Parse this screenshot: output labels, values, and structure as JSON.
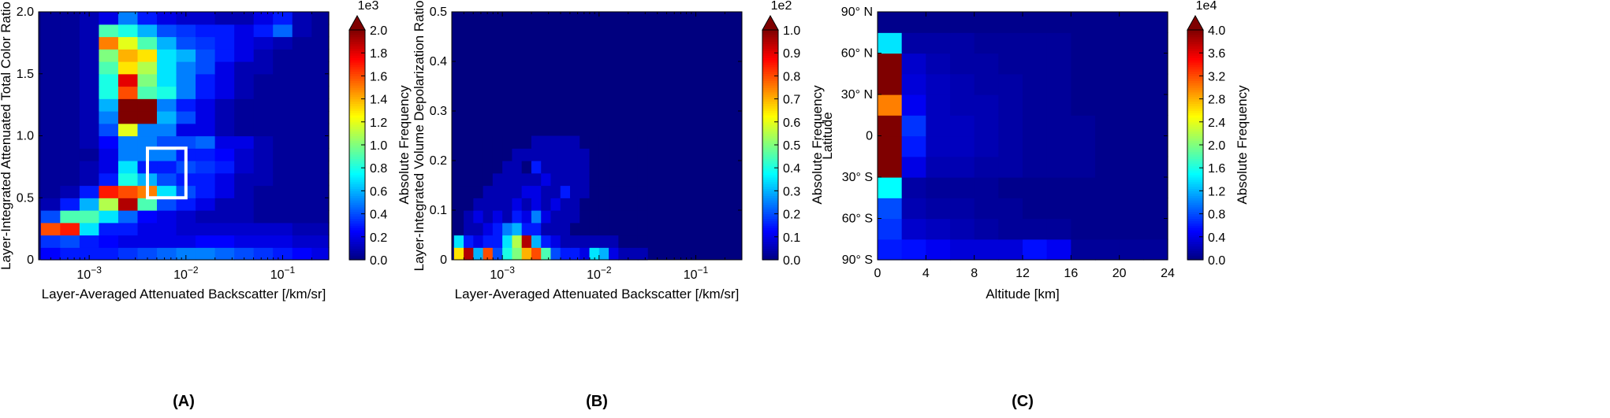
{
  "colormap": [
    "#00007f",
    "#0000ff",
    "#007fff",
    "#00ffff",
    "#7fff7f",
    "#ffff00",
    "#ff7f00",
    "#ff0000",
    "#7f0000"
  ],
  "chart_data": [
    {
      "type": "heatmap",
      "panel_label": "(A)",
      "xlabel": "Layer-Averaged Attenuated Backscatter [/km/sr]",
      "ylabel": "Layer-Integrated Attenuated Total Color Ratio",
      "xscale": "log",
      "xlim": [
        0.0003,
        0.3
      ],
      "ylim": [
        0,
        2.0
      ],
      "xticks": [
        {
          "value": 0.001,
          "base": "10",
          "exp": "−3"
        },
        {
          "value": 0.01,
          "base": "10",
          "exp": "−2"
        },
        {
          "value": 0.1,
          "base": "10",
          "exp": "−1"
        }
      ],
      "yticks": [
        "0",
        "0.5",
        "1.0",
        "1.5",
        "2.0"
      ],
      "colorbar": {
        "label": "Absolute Frequency",
        "scale_label": "1e3",
        "range": [
          0,
          2.0
        ],
        "ticks": [
          "0.0",
          "0.2",
          "0.4",
          "0.6",
          "0.8",
          "1.0",
          "1.2",
          "1.4",
          "1.6",
          "1.8",
          "2.0"
        ]
      },
      "highlight_box": {
        "x": [
          0.004,
          0.01
        ],
        "y": [
          0.5,
          0.9
        ]
      },
      "x_bin_edges_log10": [
        -3.5,
        -3.3,
        -3.1,
        -2.9,
        -2.7,
        -2.5,
        -2.3,
        -2.1,
        -1.9,
        -1.7,
        -1.5,
        -1.3,
        -1.1,
        -0.9,
        -0.7,
        -0.5
      ],
      "y_bin_edges": [
        0,
        0.1,
        0.2,
        0.3,
        0.4,
        0.5,
        0.6,
        0.7,
        0.8,
        0.9,
        1.0,
        1.1,
        1.2,
        1.3,
        1.4,
        1.5,
        1.6,
        1.7,
        1.8,
        1.9,
        2.0
      ],
      "values_rows_bottom_to_top": [
        [
          0.25,
          0.3,
          0.3,
          0.3,
          0.35,
          0.4,
          0.45,
          0.5,
          0.5,
          0.45,
          0.4,
          0.35,
          0.3,
          0.25,
          0.2
        ],
        [
          0.35,
          0.4,
          0.3,
          0.25,
          0.2,
          0.2,
          0.2,
          0.2,
          0.25,
          0.25,
          0.2,
          0.2,
          0.2,
          0.15,
          0.15
        ],
        [
          1.6,
          1.7,
          0.7,
          0.3,
          0.3,
          0.2,
          0.2,
          0.15,
          0.15,
          0.15,
          0.15,
          0.15,
          0.15,
          0.1,
          0.1
        ],
        [
          0.4,
          0.9,
          0.9,
          0.7,
          0.45,
          0.25,
          0.2,
          0.15,
          0.1,
          0.1,
          0.1,
          0.05,
          0.05,
          0.05,
          0.05
        ],
        [
          0.1,
          0.3,
          0.6,
          1.1,
          1.9,
          0.9,
          0.4,
          0.3,
          0.2,
          0.1,
          0.1,
          0.05,
          0.05,
          0.05,
          0.05
        ],
        [
          0.05,
          0.1,
          0.3,
          1.7,
          1.6,
          1.5,
          0.7,
          0.4,
          0.3,
          0.2,
          0.1,
          0.05,
          0.05,
          0.05,
          0.05
        ],
        [
          0.05,
          0.05,
          0.1,
          0.3,
          0.8,
          0.6,
          0.4,
          0.3,
          0.3,
          0.2,
          0.1,
          0.1,
          0.05,
          0.05,
          0.05
        ],
        [
          0.05,
          0.05,
          0.1,
          0.2,
          0.7,
          0.3,
          0.3,
          0.4,
          0.35,
          0.3,
          0.15,
          0.1,
          0.05,
          0.05,
          0.05
        ],
        [
          0.05,
          0.05,
          0.05,
          0.2,
          0.5,
          0.5,
          0.5,
          0.3,
          0.3,
          0.25,
          0.15,
          0.1,
          0.05,
          0.05,
          0.05
        ],
        [
          0.05,
          0.05,
          0.1,
          0.25,
          0.5,
          0.5,
          0.4,
          0.4,
          0.45,
          0.2,
          0.2,
          0.1,
          0.05,
          0.05,
          0.05
        ],
        [
          0.05,
          0.05,
          0.1,
          0.4,
          1.2,
          0.5,
          0.5,
          0.2,
          0.2,
          0.1,
          0.05,
          0.05,
          0.05,
          0.05,
          0.05
        ],
        [
          0.05,
          0.05,
          0.1,
          0.5,
          2.0,
          2.0,
          0.6,
          0.4,
          0.2,
          0.1,
          0.05,
          0.05,
          0.05,
          0.05,
          0.05
        ],
        [
          0.05,
          0.05,
          0.1,
          0.6,
          2.0,
          2.0,
          0.5,
          0.3,
          0.2,
          0.1,
          0.05,
          0.05,
          0.05,
          0.05,
          0.05
        ],
        [
          0.05,
          0.05,
          0.1,
          0.8,
          1.6,
          0.9,
          0.8,
          0.5,
          0.3,
          0.2,
          0.1,
          0.05,
          0.05,
          0.05,
          0.05
        ],
        [
          0.05,
          0.05,
          0.1,
          0.8,
          1.8,
          1.0,
          0.7,
          0.5,
          0.3,
          0.2,
          0.1,
          0.05,
          0.05,
          0.05,
          0.05
        ],
        [
          0.05,
          0.05,
          0.1,
          0.9,
          1.3,
          1.1,
          0.7,
          0.5,
          0.4,
          0.2,
          0.1,
          0.1,
          0.05,
          0.05,
          0.05
        ],
        [
          0.05,
          0.05,
          0.1,
          1.0,
          1.4,
          1.3,
          0.7,
          0.6,
          0.4,
          0.3,
          0.2,
          0.1,
          0.05,
          0.05,
          0.05
        ],
        [
          0.05,
          0.05,
          0.1,
          1.5,
          1.2,
          0.9,
          0.6,
          0.4,
          0.35,
          0.3,
          0.2,
          0.15,
          0.1,
          0.05,
          0.05
        ],
        [
          0.05,
          0.05,
          0.1,
          0.9,
          0.8,
          0.6,
          0.4,
          0.35,
          0.3,
          0.3,
          0.2,
          0.3,
          0.45,
          0.1,
          0.05
        ],
        [
          0.05,
          0.05,
          0.1,
          0.2,
          0.5,
          0.3,
          0.2,
          0.15,
          0.15,
          0.1,
          0.1,
          0.2,
          0.3,
          0.1,
          0.05
        ]
      ]
    },
    {
      "type": "heatmap",
      "panel_label": "(B)",
      "xlabel": "Layer-Averaged Attenuated Backscatter [/km/sr]",
      "ylabel": "Layer-Integrated Volume Depolarization Ratio",
      "xscale": "log",
      "xlim": [
        0.0003,
        0.3
      ],
      "ylim": [
        0,
        0.5
      ],
      "xticks": [
        {
          "value": 0.001,
          "base": "10",
          "exp": "−3"
        },
        {
          "value": 0.01,
          "base": "10",
          "exp": "−2"
        },
        {
          "value": 0.1,
          "base": "10",
          "exp": "−1"
        }
      ],
      "yticks": [
        "0",
        "0.1",
        "0.2",
        "0.3",
        "0.4",
        "0.5"
      ],
      "colorbar": {
        "label": "Absolute Frequency",
        "scale_label": "1e2",
        "range": [
          0,
          1.0
        ],
        "ticks": [
          "0.0",
          "0.1",
          "0.2",
          "0.3",
          "0.4",
          "0.5",
          "0.6",
          "0.7",
          "0.8",
          "0.9",
          "1.0"
        ]
      },
      "x_bin_edges_log10": [
        -3.5,
        -3.4,
        -3.3,
        -3.2,
        -3.1,
        -3.0,
        -2.9,
        -2.8,
        -2.7,
        -2.6,
        -2.5,
        -2.4,
        -2.3,
        -2.2,
        -2.1,
        -2.0,
        -1.9,
        -1.8,
        -1.7,
        -1.6,
        -1.5
      ],
      "y_bin_edges": [
        0,
        0.025,
        0.05,
        0.075,
        0.1,
        0.125,
        0.15,
        0.175,
        0.2,
        0.225,
        0.25
      ],
      "values_rows_bottom_to_top": [
        [
          0.65,
          0.95,
          0.3,
          0.8,
          0.2,
          0.4,
          0.5,
          0.7,
          0.8,
          0.45,
          0.2,
          0.15,
          0.15,
          0.1,
          0.35,
          0.3,
          0.1,
          0.05,
          0.05,
          0.05
        ],
        [
          0.35,
          0.15,
          0.1,
          0.15,
          0.15,
          0.35,
          0.55,
          0.95,
          0.3,
          0.15,
          0.1,
          0.05,
          0.05,
          0.05,
          0.05,
          0.05,
          0.05,
          0.0,
          0.0,
          0.0
        ],
        [
          0.0,
          0.05,
          0.05,
          0.1,
          0.15,
          0.25,
          0.3,
          0.15,
          0.15,
          0.05,
          0.05,
          0.05,
          0.0,
          0.0,
          0.0,
          0.0,
          0.0,
          0.0,
          0.0,
          0.0
        ],
        [
          0.0,
          0.05,
          0.1,
          0.05,
          0.1,
          0.05,
          0.15,
          0.1,
          0.25,
          0.1,
          0.05,
          0.05,
          0.05,
          0.0,
          0.0,
          0.0,
          0.0,
          0.0,
          0.0,
          0.0
        ],
        [
          0.0,
          0.0,
          0.05,
          0.05,
          0.05,
          0.05,
          0.1,
          0.05,
          0.1,
          0.05,
          0.1,
          0.05,
          0.05,
          0.0,
          0.0,
          0.0,
          0.0,
          0.0,
          0.0,
          0.0
        ],
        [
          0.0,
          0.0,
          0.0,
          0.05,
          0.05,
          0.05,
          0.05,
          0.1,
          0.1,
          0.05,
          0.05,
          0.15,
          0.05,
          0.05,
          0.0,
          0.0,
          0.0,
          0.0,
          0.0,
          0.0
        ],
        [
          0.0,
          0.0,
          0.0,
          0.0,
          0.05,
          0.05,
          0.05,
          0.05,
          0.05,
          0.1,
          0.05,
          0.05,
          0.05,
          0.05,
          0.0,
          0.0,
          0.0,
          0.0,
          0.0,
          0.0
        ],
        [
          0.0,
          0.0,
          0.0,
          0.0,
          0.0,
          0.05,
          0.05,
          0.0,
          0.15,
          0.05,
          0.05,
          0.05,
          0.05,
          0.05,
          0.0,
          0.0,
          0.0,
          0.0,
          0.0,
          0.0
        ],
        [
          0.0,
          0.0,
          0.0,
          0.0,
          0.0,
          0.0,
          0.05,
          0.05,
          0.05,
          0.05,
          0.05,
          0.05,
          0.05,
          0.05,
          0.0,
          0.0,
          0.0,
          0.0,
          0.0,
          0.0
        ],
        [
          0.0,
          0.0,
          0.0,
          0.0,
          0.0,
          0.0,
          0.0,
          0.0,
          0.05,
          0.05,
          0.05,
          0.05,
          0.05,
          0.0,
          0.0,
          0.0,
          0.0,
          0.0,
          0.0,
          0.0
        ]
      ]
    },
    {
      "type": "heatmap",
      "panel_label": "(C)",
      "xlabel": "Altitude [km]",
      "ylabel": "Latitude",
      "xscale": "linear",
      "xlim": [
        0,
        24
      ],
      "ylim": [
        -90,
        90
      ],
      "xticks": [
        "0",
        "4",
        "8",
        "12",
        "16",
        "20",
        "24"
      ],
      "yticks": [
        "90° S",
        "60° S",
        "30° S",
        "0",
        "30° N",
        "60° N",
        "90° N"
      ],
      "colorbar": {
        "label": "Absolute Frequency",
        "scale_label": "1e4",
        "range": [
          0,
          4.0
        ],
        "ticks": [
          "0.0",
          "0.4",
          "0.8",
          "1.2",
          "1.6",
          "2.0",
          "2.4",
          "2.8",
          "3.2",
          "3.6",
          "4.0"
        ]
      },
      "x_bin_edges": [
        0,
        2,
        4,
        6,
        8,
        10,
        12,
        14,
        16,
        18,
        20,
        22,
        24
      ],
      "y_bin_edges": [
        -90,
        -75,
        -60,
        -45,
        -30,
        -15,
        0,
        15,
        30,
        45,
        60,
        75,
        90
      ],
      "values_rows_bottom_to_top": [
        [
          0.6,
          0.55,
          0.45,
          0.35,
          0.35,
          0.35,
          0.55,
          0.45,
          0.1,
          0.1,
          0.1,
          0.1
        ],
        [
          0.7,
          0.3,
          0.25,
          0.2,
          0.15,
          0.1,
          0.1,
          0.1,
          0.05,
          0.05,
          0.05,
          0.05
        ],
        [
          0.8,
          0.2,
          0.15,
          0.15,
          0.1,
          0.1,
          0.05,
          0.05,
          0.05,
          0.05,
          0.05,
          0.05
        ],
        [
          1.5,
          0.15,
          0.1,
          0.1,
          0.1,
          0.05,
          0.05,
          0.05,
          0.05,
          0.05,
          0.05,
          0.05
        ],
        [
          4.0,
          0.4,
          0.2,
          0.2,
          0.15,
          0.15,
          0.1,
          0.1,
          0.1,
          0.05,
          0.05,
          0.05
        ],
        [
          4.0,
          0.6,
          0.25,
          0.25,
          0.2,
          0.15,
          0.1,
          0.1,
          0.1,
          0.05,
          0.05,
          0.05
        ],
        [
          4.0,
          0.7,
          0.25,
          0.25,
          0.2,
          0.15,
          0.1,
          0.1,
          0.1,
          0.05,
          0.05,
          0.05
        ],
        [
          3.0,
          0.45,
          0.25,
          0.2,
          0.2,
          0.15,
          0.1,
          0.1,
          0.05,
          0.05,
          0.05,
          0.05
        ],
        [
          4.0,
          0.35,
          0.25,
          0.2,
          0.15,
          0.15,
          0.1,
          0.1,
          0.05,
          0.05,
          0.05,
          0.05
        ],
        [
          4.0,
          0.3,
          0.2,
          0.15,
          0.15,
          0.1,
          0.1,
          0.1,
          0.05,
          0.05,
          0.05,
          0.05
        ],
        [
          1.4,
          0.15,
          0.15,
          0.15,
          0.1,
          0.1,
          0.1,
          0.1,
          0.05,
          0.05,
          0.05,
          0.05
        ],
        [
          0.05,
          0.05,
          0.05,
          0.05,
          0.05,
          0.05,
          0.05,
          0.05,
          0.05,
          0.05,
          0.05,
          0.05
        ]
      ]
    }
  ]
}
